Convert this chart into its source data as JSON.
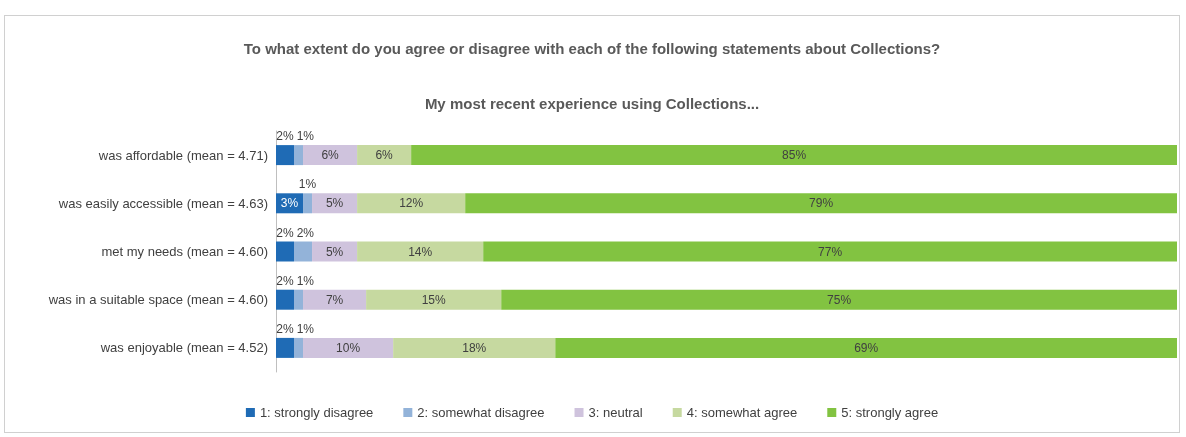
{
  "chart_data": {
    "type": "bar",
    "orientation": "horizontal",
    "stacked": true,
    "title": "To what extent do you agree or disagree with each of the following statements about Collections?",
    "subtitle": "My most recent experience using Collections...",
    "categories": [
      "was affordable (mean = 4.71)",
      "was easily accessible (mean = 4.63)",
      "met my needs (mean = 4.60)",
      "was in a suitable space (mean = 4.60)",
      "was enjoyable (mean = 4.52)"
    ],
    "xlim": [
      0,
      100
    ],
    "tick_labels": "y",
    "grid": false,
    "legend": "bottom",
    "series": [
      {
        "name": "1: strongly disagree",
        "color": "#1f6bb5",
        "values": [
          2,
          3,
          2,
          2,
          2
        ],
        "value_labels": [
          "2%",
          "3%",
          "2%",
          "2%",
          "2%"
        ]
      },
      {
        "name": "2: somewhat disagree",
        "color": "#93b3d9",
        "values": [
          1,
          1,
          2,
          1,
          1
        ],
        "value_labels": [
          "1%",
          "1%",
          "2%",
          "1%",
          "1%"
        ]
      },
      {
        "name": "3: neutral",
        "color": "#cfc3dd",
        "values": [
          6,
          5,
          5,
          7,
          10
        ],
        "value_labels": [
          "6%",
          "5%",
          "5%",
          "7%",
          "10%"
        ]
      },
      {
        "name": "4: somewhat agree",
        "color": "#c6d9a0",
        "values": [
          6,
          12,
          14,
          15,
          18
        ],
        "value_labels": [
          "6%",
          "12%",
          "14%",
          "15%",
          "18%"
        ]
      },
      {
        "name": "5: strongly agree",
        "color": "#82c341",
        "values": [
          85,
          79,
          77,
          75,
          69
        ],
        "value_labels": [
          "85%",
          "79%",
          "77%",
          "75%",
          "69%"
        ]
      }
    ]
  }
}
